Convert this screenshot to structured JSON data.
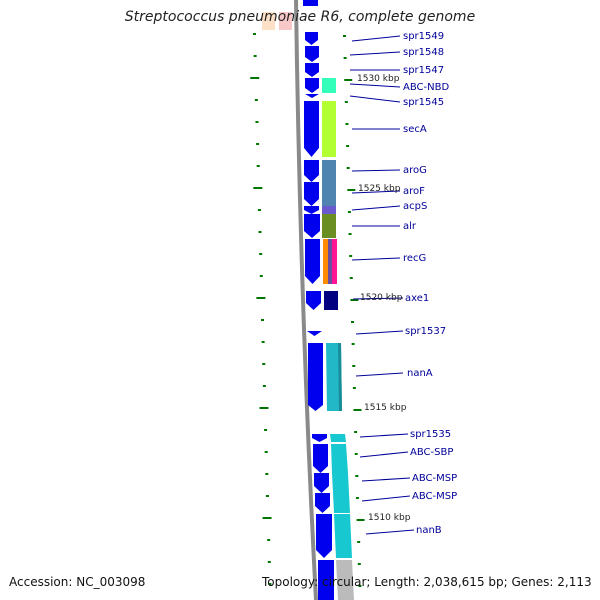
{
  "map": {
    "title": "Streptococcus pneumoniae R6, complete genome",
    "accession": "Accession: NC_003098",
    "summary": "Topology: circular; Length: 2,038,615 bp; Genes: 2,113"
  },
  "position_markers": [
    "1530 kbp",
    "1525 kbp",
    "1520 kbp",
    "1515 kbp",
    "1510 kbp"
  ],
  "genes": [
    {
      "id": "spr1549",
      "label": "spr1549",
      "cog_color": ""
    },
    {
      "id": "spr1548",
      "label": "spr1548",
      "cog_color": ""
    },
    {
      "id": "spr1547",
      "label": "spr1547",
      "cog_color": ""
    },
    {
      "id": "abc-nbd",
      "label": "ABC-NBD",
      "cog_color": "#33ffcc"
    },
    {
      "id": "spr1545",
      "label": "spr1545",
      "cog_color": ""
    },
    {
      "id": "seca",
      "label": "secA",
      "cog_color": "#aaff33"
    },
    {
      "id": "arog",
      "label": "aroG",
      "cog_color": "#4682b4"
    },
    {
      "id": "arof",
      "label": "aroF",
      "cog_color": "#4682b4"
    },
    {
      "id": "acps",
      "label": "acpS",
      "cog_color": "#6a5acd"
    },
    {
      "id": "alr",
      "label": "alr",
      "cog_color": "#6b8e23"
    },
    {
      "id": "recg",
      "label": "recG",
      "cog_color": "#ff8c00"
    },
    {
      "id": "axe1",
      "label": "axe1",
      "cog_color": "#000080"
    },
    {
      "id": "spr1537",
      "label": "spr1537",
      "cog_color": ""
    },
    {
      "id": "nana",
      "label": "nanA",
      "cog_color": "#20b2aa"
    },
    {
      "id": "spr1535",
      "label": "spr1535",
      "cog_color": "#00ced1"
    },
    {
      "id": "abc-sbp",
      "label": "ABC-SBP",
      "cog_color": "#00ced1"
    },
    {
      "id": "abc-msp-1",
      "label": "ABC-MSP",
      "cog_color": "#00ced1"
    },
    {
      "id": "abc-msp-2",
      "label": "ABC-MSP",
      "cog_color": "#00ced1"
    },
    {
      "id": "nanb",
      "label": "nanB",
      "cog_color": "#00ced1"
    }
  ],
  "colors": {
    "cds": "#0000ee",
    "backbone": "#808080",
    "tick": "#007700",
    "label": "#000099",
    "label_line": "#000099"
  }
}
